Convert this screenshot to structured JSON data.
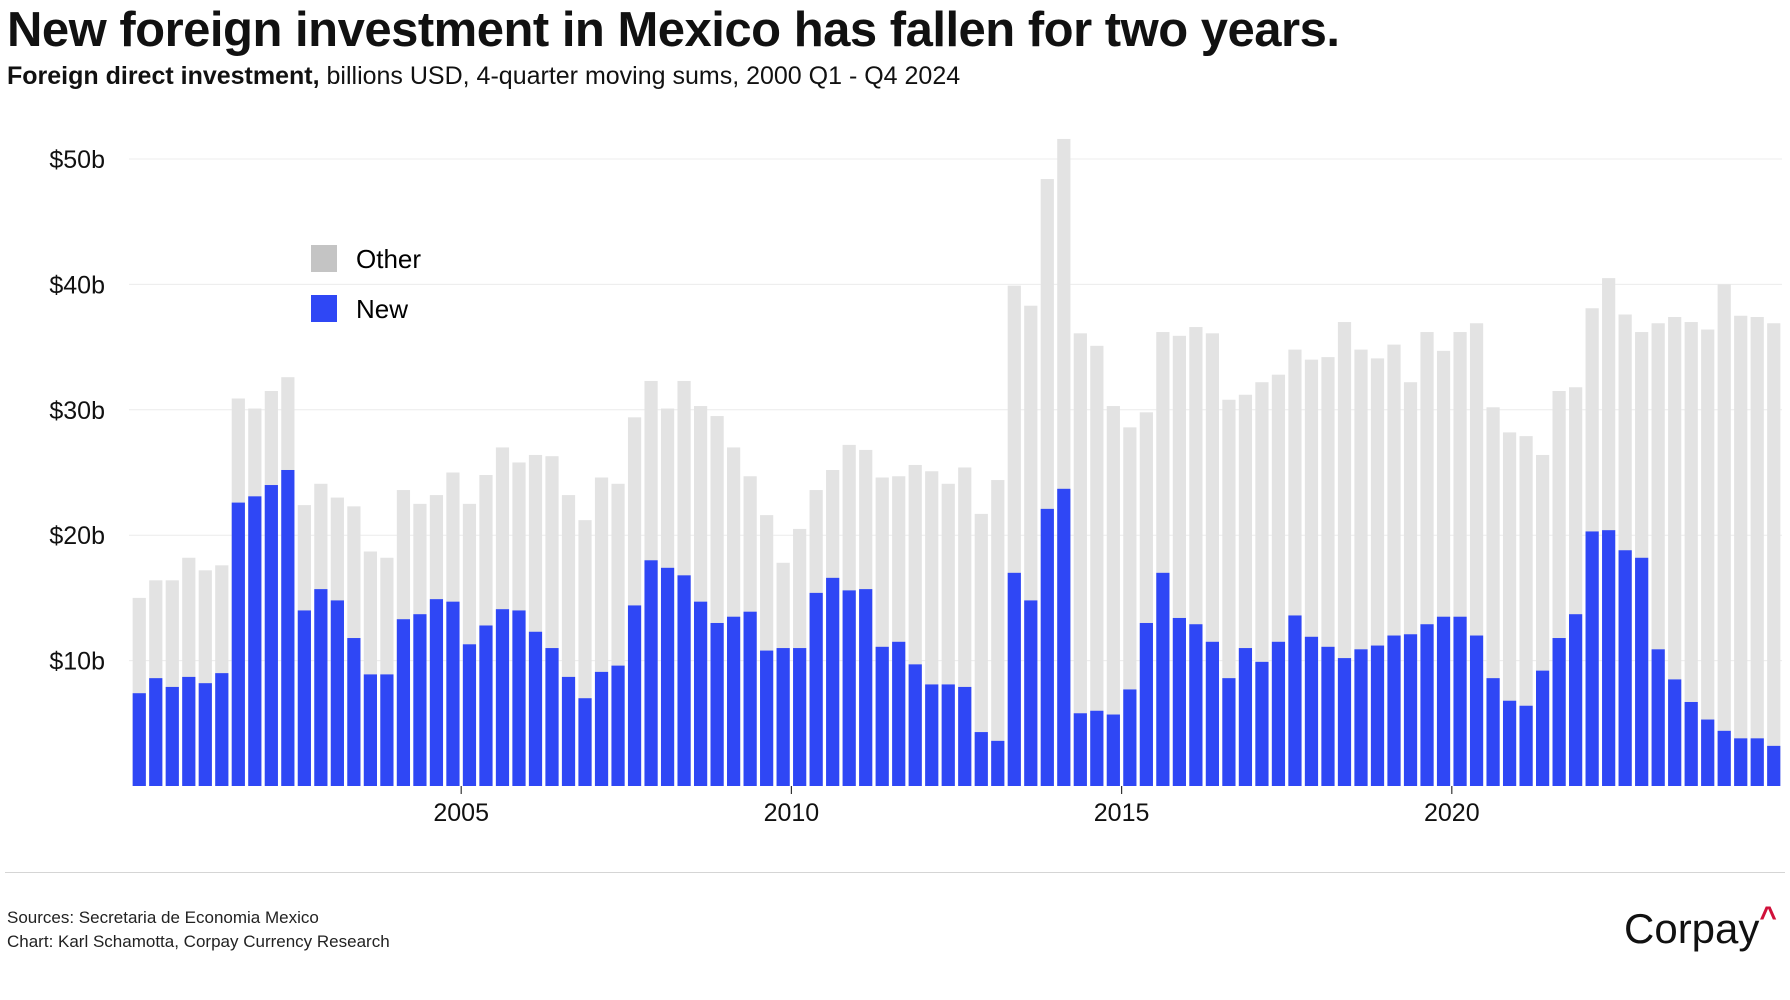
{
  "header": {
    "title": "New foreign investment in Mexico has fallen for two years.",
    "subtitle_bold": "Foreign direct investment,",
    "subtitle_rest": " billions USD, 4-quarter moving sums, 2000 Q1 - Q4 2024"
  },
  "footer": {
    "sources": "Sources: Secretaria de Economia Mexico",
    "credit": "Chart: Karl Schamotta, Corpay Currency Research",
    "logo": "Corpay",
    "logo_mark": "^"
  },
  "colors": {
    "other": "#e3e3e3",
    "new": "#2f47f5",
    "legend_other": "#c4c4c4",
    "grid": "#ececec"
  },
  "chart_data": {
    "type": "bar",
    "stacked": true,
    "title": "New foreign investment in Mexico has fallen for two years.",
    "xlabel": "",
    "ylabel": "",
    "ylim": [
      0,
      52
    ],
    "yticks": [
      10,
      20,
      30,
      40,
      50
    ],
    "ytick_labels": [
      "$10b",
      "$20b",
      "$30b",
      "$40b",
      "$50b"
    ],
    "xtick_labels": [
      "2005",
      "2010",
      "2015",
      "2020"
    ],
    "xtick_years": [
      2005,
      2010,
      2015,
      2020
    ],
    "start": "2000 Q1",
    "end": "2024 Q4",
    "legend": {
      "placement": "top-left",
      "entries": [
        "Other",
        "New"
      ]
    },
    "grid": true,
    "total": [
      15.0,
      16.4,
      16.4,
      18.2,
      17.2,
      17.6,
      30.9,
      30.1,
      31.5,
      32.6,
      22.4,
      24.1,
      23.0,
      22.3,
      18.7,
      18.2,
      23.6,
      22.5,
      23.2,
      25.0,
      22.5,
      24.8,
      27.0,
      25.8,
      26.4,
      26.3,
      23.2,
      21.2,
      24.6,
      24.1,
      29.4,
      32.3,
      30.1,
      32.3,
      30.3,
      29.5,
      27.0,
      24.7,
      21.6,
      17.8,
      20.5,
      23.6,
      25.2,
      27.2,
      26.8,
      24.6,
      24.7,
      25.6,
      25.1,
      24.1,
      25.4,
      21.7,
      24.4,
      39.9,
      38.3,
      48.4,
      51.6,
      36.1,
      35.1,
      30.3,
      28.6,
      29.8,
      36.2,
      35.9,
      36.6,
      36.1,
      30.8,
      31.2,
      32.2,
      32.8,
      34.8,
      34.0,
      34.2,
      37.0,
      34.8,
      34.1,
      35.2,
      32.2,
      36.2,
      34.7,
      36.2,
      36.9,
      30.2,
      28.2,
      27.9,
      26.4,
      31.5,
      31.8,
      38.1,
      40.5,
      37.6,
      36.2,
      36.9,
      37.4,
      37.0,
      36.4,
      40.0,
      37.5,
      37.4,
      36.9
    ],
    "series": [
      {
        "name": "New",
        "values": [
          7.4,
          8.6,
          7.9,
          8.7,
          8.2,
          9.0,
          22.6,
          23.1,
          24.0,
          25.2,
          14.0,
          15.7,
          14.8,
          11.8,
          8.9,
          8.9,
          13.3,
          13.7,
          14.9,
          14.7,
          11.3,
          12.8,
          14.1,
          14.0,
          12.3,
          11.0,
          8.7,
          7.0,
          9.1,
          9.6,
          14.4,
          18.0,
          17.4,
          16.8,
          14.7,
          13.0,
          13.5,
          13.9,
          10.8,
          11.0,
          11.0,
          15.4,
          16.6,
          15.6,
          15.7,
          11.1,
          11.5,
          9.7,
          8.1,
          8.1,
          7.9,
          4.3,
          3.6,
          17.0,
          14.8,
          22.1,
          23.7,
          5.8,
          6.0,
          5.7,
          7.7,
          13.0,
          17.0,
          13.4,
          12.9,
          11.5,
          8.6,
          11.0,
          9.9,
          11.5,
          13.6,
          11.9,
          11.1,
          10.2,
          10.9,
          11.2,
          12.0,
          12.1,
          12.9,
          13.5,
          13.5,
          12.0,
          8.6,
          6.8,
          6.4,
          9.2,
          11.8,
          13.7,
          20.3,
          20.4,
          18.8,
          18.2,
          10.9,
          8.5,
          6.7,
          5.3,
          4.4,
          3.8,
          3.8,
          3.2
        ]
      },
      {
        "name": "Other",
        "values": "total minus New"
      }
    ]
  }
}
